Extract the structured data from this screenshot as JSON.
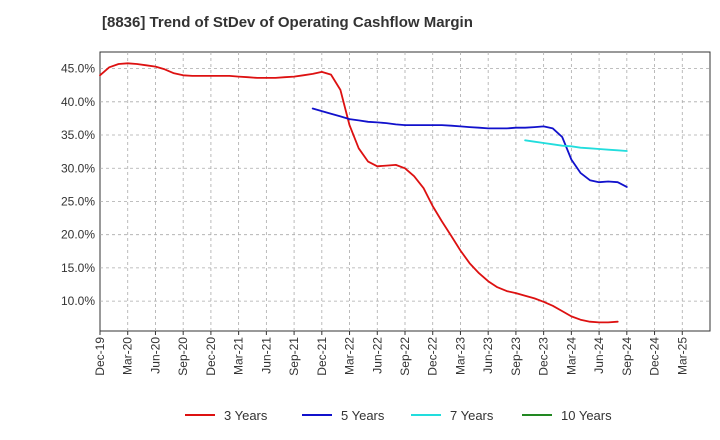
{
  "chart_data": {
    "type": "line",
    "title": "[8836]  Trend of StDev of Operating Cashflow Margin",
    "xlabel": "",
    "ylabel": "",
    "x_ticks": [
      "Dec-19",
      "Mar-20",
      "Jun-20",
      "Sep-20",
      "Dec-20",
      "Mar-21",
      "Jun-21",
      "Sep-21",
      "Dec-21",
      "Mar-22",
      "Jun-22",
      "Sep-22",
      "Dec-22",
      "Mar-23",
      "Jun-23",
      "Sep-23",
      "Dec-23",
      "Mar-24",
      "Jun-24",
      "Sep-24",
      "Dec-24",
      "Mar-25"
    ],
    "y_ticks": [
      "10.0%",
      "15.0%",
      "20.0%",
      "25.0%",
      "30.0%",
      "35.0%",
      "40.0%",
      "45.0%"
    ],
    "y_tick_values": [
      10,
      15,
      20,
      25,
      30,
      35,
      40,
      45
    ],
    "ylim": [
      5.5,
      47.5
    ],
    "grid": true,
    "legend_position": "bottom",
    "series": [
      {
        "name": "3 Years",
        "color": "#dd1111",
        "points": [
          [
            0,
            44.0
          ],
          [
            0.33,
            45.2
          ],
          [
            0.67,
            45.7
          ],
          [
            1,
            45.8
          ],
          [
            1.33,
            45.7
          ],
          [
            1.67,
            45.5
          ],
          [
            2,
            45.3
          ],
          [
            2.33,
            44.9
          ],
          [
            2.67,
            44.3
          ],
          [
            3,
            44.0
          ],
          [
            3.33,
            43.9
          ],
          [
            3.67,
            43.9
          ],
          [
            4,
            43.9
          ],
          [
            4.33,
            43.9
          ],
          [
            4.67,
            43.9
          ],
          [
            5,
            43.8
          ],
          [
            5.33,
            43.7
          ],
          [
            5.67,
            43.6
          ],
          [
            6,
            43.6
          ],
          [
            6.33,
            43.6
          ],
          [
            6.67,
            43.7
          ],
          [
            7,
            43.8
          ],
          [
            7.33,
            44.0
          ],
          [
            7.67,
            44.2
          ],
          [
            8,
            44.5
          ],
          [
            8.33,
            44.1
          ],
          [
            8.67,
            41.8
          ],
          [
            9,
            36.5
          ],
          [
            9.33,
            33.0
          ],
          [
            9.67,
            31.0
          ],
          [
            10,
            30.3
          ],
          [
            10.33,
            30.4
          ],
          [
            10.67,
            30.5
          ],
          [
            11,
            30.0
          ],
          [
            11.33,
            28.8
          ],
          [
            11.67,
            27.0
          ],
          [
            12,
            24.3
          ],
          [
            12.33,
            22.0
          ],
          [
            12.67,
            19.8
          ],
          [
            13,
            17.6
          ],
          [
            13.33,
            15.7
          ],
          [
            13.67,
            14.2
          ],
          [
            14,
            13.0
          ],
          [
            14.33,
            12.1
          ],
          [
            14.67,
            11.5
          ],
          [
            15,
            11.2
          ],
          [
            15.33,
            10.8
          ],
          [
            15.67,
            10.4
          ],
          [
            16,
            9.9
          ],
          [
            16.33,
            9.3
          ],
          [
            16.67,
            8.5
          ],
          [
            17,
            7.7
          ],
          [
            17.33,
            7.2
          ],
          [
            17.67,
            6.9
          ],
          [
            18,
            6.8
          ],
          [
            18.33,
            6.8
          ],
          [
            18.67,
            6.9
          ]
        ]
      },
      {
        "name": "5 Years",
        "color": "#1111cc",
        "points": [
          [
            7.67,
            39.0
          ],
          [
            8,
            38.6
          ],
          [
            8.33,
            38.2
          ],
          [
            8.67,
            37.8
          ],
          [
            9,
            37.4
          ],
          [
            9.33,
            37.2
          ],
          [
            9.67,
            37.0
          ],
          [
            10,
            36.9
          ],
          [
            10.33,
            36.8
          ],
          [
            10.67,
            36.6
          ],
          [
            11,
            36.5
          ],
          [
            11.33,
            36.5
          ],
          [
            11.67,
            36.5
          ],
          [
            12,
            36.5
          ],
          [
            12.33,
            36.5
          ],
          [
            12.67,
            36.4
          ],
          [
            13,
            36.3
          ],
          [
            13.33,
            36.2
          ],
          [
            13.67,
            36.1
          ],
          [
            14,
            36.0
          ],
          [
            14.33,
            36.0
          ],
          [
            14.67,
            36.0
          ],
          [
            15,
            36.1
          ],
          [
            15.33,
            36.1
          ],
          [
            15.67,
            36.2
          ],
          [
            16,
            36.3
          ],
          [
            16.33,
            36.0
          ],
          [
            16.67,
            34.7
          ],
          [
            17,
            31.3
          ],
          [
            17.33,
            29.3
          ],
          [
            17.67,
            28.2
          ],
          [
            18,
            27.9
          ],
          [
            18.33,
            28.0
          ],
          [
            18.67,
            27.9
          ],
          [
            19,
            27.2
          ]
        ]
      },
      {
        "name": "7 Years",
        "color": "#22dddd",
        "points": [
          [
            15.33,
            34.2
          ],
          [
            15.67,
            34.0
          ],
          [
            16,
            33.8
          ],
          [
            16.33,
            33.6
          ],
          [
            16.67,
            33.4
          ],
          [
            17,
            33.3
          ],
          [
            17.33,
            33.1
          ],
          [
            17.67,
            33.0
          ],
          [
            18,
            32.9
          ],
          [
            18.33,
            32.8
          ],
          [
            18.67,
            32.7
          ],
          [
            19,
            32.6
          ]
        ]
      },
      {
        "name": "10 Years",
        "color": "#228822",
        "points": []
      }
    ]
  }
}
